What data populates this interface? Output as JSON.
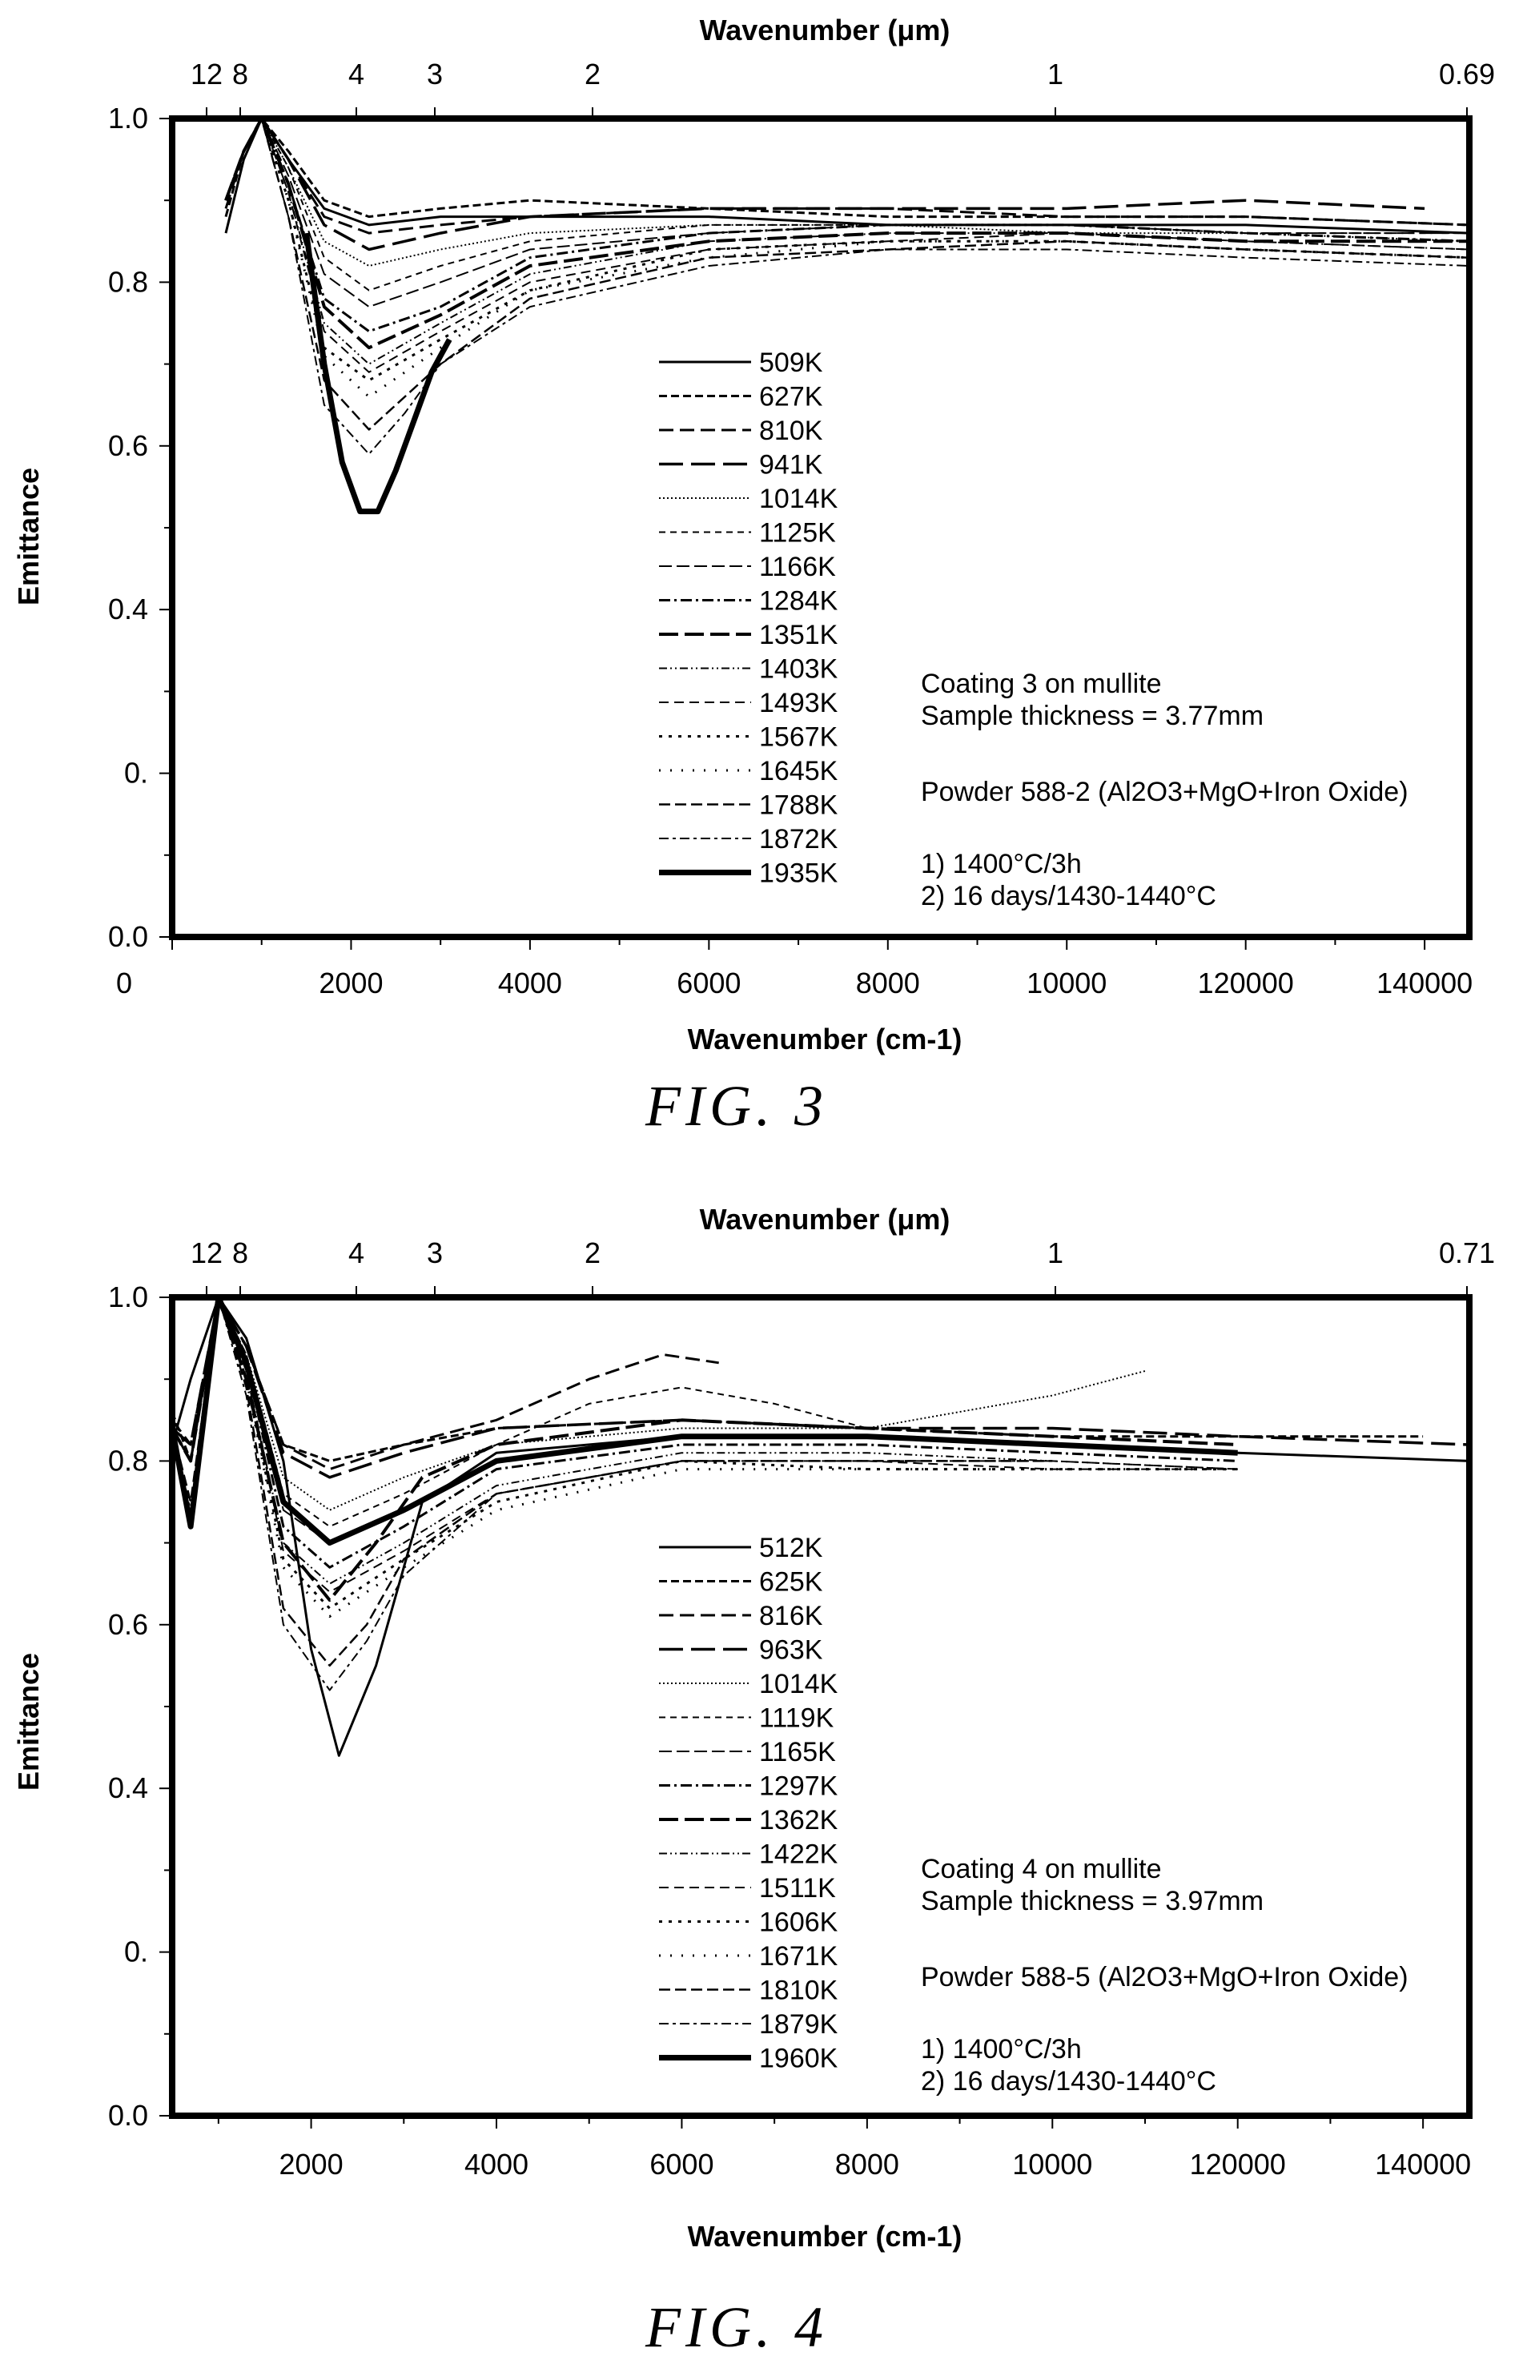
{
  "chart_data": [
    {
      "type": "line",
      "caption": "FIG. 3",
      "top_axis": {
        "title": "Wavenumber (μm)",
        "tick_labels": [
          "12",
          "8",
          "4",
          "3",
          "2",
          "1",
          "0.69"
        ]
      },
      "xlabel": "Wavenumber (cm-1)",
      "ylabel": "Emittance",
      "x_tick_labels": [
        "0",
        "2000",
        "4000",
        "6000",
        "8000",
        "10000",
        "120000",
        "140000"
      ],
      "y_tick_labels": [
        "0.0",
        "0.",
        "0.4",
        "0.6",
        "0.8",
        "1.0"
      ],
      "xlim": [
        0,
        14500
      ],
      "ylim": [
        0,
        1.0
      ],
      "legend_placement": "center",
      "annotations": {
        "coating": "Coating 3 on mullite",
        "thickness": "Sample thickness = 3.77mm",
        "powder": "Powder 588-2 (Al2O3+MgO+Iron Oxide)",
        "step1": "1) 1400°C/3h",
        "step2": "2) 16 days/1430-1440°C"
      },
      "series": [
        {
          "name": "509K",
          "x": [
            600,
            800,
            1000,
            1300,
            1700,
            2200,
            3000,
            4000,
            6000,
            8000,
            10000,
            12000,
            14500
          ],
          "y": [
            0.86,
            0.95,
            1.0,
            0.95,
            0.89,
            0.87,
            0.88,
            0.88,
            0.88,
            0.87,
            0.87,
            0.87,
            0.86
          ]
        },
        {
          "name": "627K",
          "x": [
            600,
            800,
            1000,
            1300,
            1700,
            2200,
            3000,
            4000,
            6000,
            8000,
            10000,
            12000,
            14500
          ],
          "y": [
            0.88,
            0.96,
            1.0,
            0.96,
            0.9,
            0.88,
            0.89,
            0.9,
            0.89,
            0.88,
            0.88,
            0.88,
            0.87
          ]
        },
        {
          "name": "810K",
          "x": [
            600,
            800,
            1000,
            1300,
            1700,
            2200,
            3000,
            4000,
            6000,
            8000,
            10000,
            12000,
            14500
          ],
          "y": [
            0.89,
            0.96,
            1.0,
            0.95,
            0.88,
            0.86,
            0.87,
            0.88,
            0.89,
            0.89,
            0.88,
            0.88,
            0.87
          ]
        },
        {
          "name": "941K",
          "x": [
            600,
            800,
            1000,
            1300,
            1700,
            2200,
            3000,
            4000,
            6000,
            8000,
            10000,
            12000,
            14000
          ],
          "y": [
            0.9,
            0.96,
            1.0,
            0.95,
            0.87,
            0.84,
            0.86,
            0.88,
            0.89,
            0.89,
            0.89,
            0.9,
            0.89
          ]
        },
        {
          "name": "1014K",
          "x": [
            600,
            800,
            1000,
            1300,
            1700,
            2200,
            3000,
            4000,
            6000,
            8000,
            10000,
            12000,
            14500
          ],
          "y": [
            0.9,
            0.96,
            1.0,
            0.94,
            0.85,
            0.82,
            0.84,
            0.86,
            0.87,
            0.87,
            0.86,
            0.86,
            0.85
          ]
        },
        {
          "name": "1125K",
          "x": [
            600,
            800,
            1000,
            1300,
            1700,
            2200,
            3000,
            4000,
            6000,
            8000,
            10000,
            12000,
            14500
          ],
          "y": [
            0.9,
            0.96,
            1.0,
            0.94,
            0.83,
            0.79,
            0.82,
            0.85,
            0.87,
            0.87,
            0.87,
            0.86,
            0.86
          ]
        },
        {
          "name": "1166K",
          "x": [
            600,
            800,
            1000,
            1300,
            1700,
            2200,
            3000,
            4000,
            6000,
            8000,
            10000,
            12000,
            14500
          ],
          "y": [
            0.9,
            0.96,
            1.0,
            0.93,
            0.81,
            0.77,
            0.8,
            0.84,
            0.86,
            0.87,
            0.87,
            0.86,
            0.86
          ]
        },
        {
          "name": "1284K",
          "x": [
            600,
            800,
            1000,
            1300,
            1700,
            2200,
            3000,
            4000,
            6000,
            8000,
            10000,
            12000,
            14500
          ],
          "y": [
            0.9,
            0.96,
            1.0,
            0.92,
            0.78,
            0.74,
            0.77,
            0.83,
            0.86,
            0.87,
            0.87,
            0.86,
            0.85
          ]
        },
        {
          "name": "1351K",
          "x": [
            600,
            800,
            1000,
            1300,
            1700,
            2200,
            3000,
            4000,
            6000,
            8000,
            10000,
            12000,
            14500
          ],
          "y": [
            0.9,
            0.96,
            1.0,
            0.92,
            0.77,
            0.72,
            0.76,
            0.82,
            0.85,
            0.86,
            0.86,
            0.85,
            0.85
          ]
        },
        {
          "name": "1403K",
          "x": [
            600,
            800,
            1000,
            1300,
            1700,
            2200,
            3000,
            4000,
            6000,
            8000,
            10000,
            12000,
            14500
          ],
          "y": [
            0.9,
            0.96,
            1.0,
            0.91,
            0.75,
            0.7,
            0.75,
            0.81,
            0.85,
            0.86,
            0.86,
            0.85,
            0.84
          ]
        },
        {
          "name": "1493K",
          "x": [
            600,
            800,
            1000,
            1300,
            1700,
            2200,
            3000,
            4000,
            6000,
            8000,
            10000,
            12000,
            14500
          ],
          "y": [
            0.9,
            0.96,
            1.0,
            0.91,
            0.74,
            0.69,
            0.74,
            0.8,
            0.84,
            0.85,
            0.86,
            0.85,
            0.84
          ]
        },
        {
          "name": "1567K",
          "x": [
            600,
            800,
            1000,
            1300,
            1700,
            2200,
            3000,
            4000,
            6000,
            8000,
            10000,
            12000,
            14500
          ],
          "y": [
            0.9,
            0.96,
            1.0,
            0.9,
            0.72,
            0.68,
            0.73,
            0.79,
            0.84,
            0.85,
            0.85,
            0.84,
            0.83
          ]
        },
        {
          "name": "1645K",
          "x": [
            600,
            800,
            1000,
            1300,
            1700,
            2200,
            3000,
            4000,
            6000,
            8000,
            10000,
            12000,
            14500
          ],
          "y": [
            0.9,
            0.96,
            1.0,
            0.9,
            0.71,
            0.66,
            0.72,
            0.79,
            0.83,
            0.85,
            0.85,
            0.84,
            0.83
          ]
        },
        {
          "name": "1788K",
          "x": [
            600,
            800,
            1000,
            1300,
            1700,
            2200,
            3000,
            4000,
            6000,
            8000,
            10000,
            12000,
            14500
          ],
          "y": [
            0.9,
            0.96,
            1.0,
            0.88,
            0.68,
            0.62,
            0.7,
            0.78,
            0.83,
            0.84,
            0.85,
            0.84,
            0.83
          ]
        },
        {
          "name": "1872K",
          "x": [
            600,
            800,
            1000,
            1300,
            1700,
            2200,
            2600,
            3000,
            4000,
            6000,
            8000,
            10000,
            12000,
            14500
          ],
          "y": [
            0.9,
            0.96,
            1.0,
            0.88,
            0.65,
            0.59,
            0.64,
            0.7,
            0.77,
            0.82,
            0.84,
            0.84,
            0.83,
            0.82
          ]
        },
        {
          "name": "1935K",
          "x": [
            1500,
            1700,
            1900,
            2100,
            2300,
            2500,
            2700,
            2900,
            3100
          ],
          "y": [
            0.86,
            0.7,
            0.58,
            0.52,
            0.52,
            0.57,
            0.63,
            0.69,
            0.73
          ]
        }
      ]
    },
    {
      "type": "line",
      "caption": "FIG. 4",
      "top_axis": {
        "title": "Wavenumber (μm)",
        "tick_labels": [
          "12",
          "8",
          "4",
          "3",
          "2",
          "1",
          "0.71"
        ]
      },
      "xlabel": "Wavenumber (cm-1)",
      "ylabel": "Emittance",
      "x_tick_labels": [
        "2000",
        "4000",
        "6000",
        "8000",
        "10000",
        "120000",
        "140000"
      ],
      "y_tick_labels": [
        "0.0",
        "0.",
        "0.4",
        "0.6",
        "0.8",
        "1.0"
      ],
      "xlim": [
        500,
        14500
      ],
      "ylim": [
        0,
        1.0
      ],
      "legend_placement": "center",
      "annotations": {
        "coating": "Coating 4 on mullite",
        "thickness": "Sample thickness = 3.97mm",
        "powder": "Powder 588-5 (Al2O3+MgO+Iron Oxide)",
        "step1": "1) 1400°C/3h",
        "step2": "2) 16 days/1430-1440°C"
      },
      "series": [
        {
          "name": "512K",
          "x": [
            500,
            700,
            1000,
            1300,
            1700,
            2000,
            2300,
            2700,
            3200,
            4000,
            6000,
            8000,
            10000,
            12000,
            14500
          ],
          "y": [
            0.82,
            0.9,
            1.0,
            0.95,
            0.8,
            0.57,
            0.44,
            0.55,
            0.75,
            0.81,
            0.83,
            0.83,
            0.82,
            0.81,
            0.8
          ]
        },
        {
          "name": "625K",
          "x": [
            500,
            700,
            1000,
            1300,
            1700,
            2200,
            3000,
            4000,
            6000,
            8000,
            10000,
            12000,
            14000
          ],
          "y": [
            0.86,
            0.8,
            1.0,
            0.94,
            0.82,
            0.8,
            0.82,
            0.84,
            0.85,
            0.84,
            0.83,
            0.83,
            0.83
          ]
        },
        {
          "name": "816K",
          "x": [
            500,
            700,
            1000,
            1300,
            1700,
            2200,
            3000,
            4000,
            5000,
            5800,
            6400
          ],
          "y": [
            0.85,
            0.82,
            1.0,
            0.94,
            0.82,
            0.79,
            0.82,
            0.85,
            0.9,
            0.93,
            0.92
          ]
        },
        {
          "name": "963K",
          "x": [
            500,
            700,
            1000,
            1300,
            1700,
            2200,
            3000,
            4000,
            6000,
            8000,
            10000,
            12000,
            14500
          ],
          "y": [
            0.84,
            0.82,
            1.0,
            0.94,
            0.81,
            0.78,
            0.81,
            0.84,
            0.85,
            0.84,
            0.84,
            0.83,
            0.82
          ]
        },
        {
          "name": "1014K",
          "x": [
            500,
            700,
            1000,
            1300,
            1700,
            2200,
            3000,
            4000,
            6000,
            8000,
            10000,
            11000
          ],
          "y": [
            0.84,
            0.8,
            1.0,
            0.93,
            0.78,
            0.74,
            0.78,
            0.82,
            0.84,
            0.84,
            0.88,
            0.91
          ]
        },
        {
          "name": "1119K",
          "x": [
            500,
            700,
            1000,
            1300,
            1700,
            2200,
            3000,
            4000,
            5000,
            6000,
            7000,
            8000
          ],
          "y": [
            0.84,
            0.8,
            1.0,
            0.93,
            0.76,
            0.72,
            0.76,
            0.82,
            0.87,
            0.89,
            0.87,
            0.84
          ]
        },
        {
          "name": "1165K",
          "x": [
            500,
            700,
            1000,
            1300,
            1700,
            2200,
            3000,
            4000,
            6000,
            8000,
            10000,
            12000
          ],
          "y": [
            0.84,
            0.8,
            1.0,
            0.92,
            0.74,
            0.7,
            0.74,
            0.8,
            0.83,
            0.83,
            0.82,
            0.81
          ]
        },
        {
          "name": "1297K",
          "x": [
            500,
            700,
            1000,
            1300,
            1700,
            2200,
            3000,
            4000,
            6000,
            8000,
            10000,
            12000
          ],
          "y": [
            0.84,
            0.8,
            1.0,
            0.92,
            0.72,
            0.67,
            0.72,
            0.79,
            0.82,
            0.82,
            0.81,
            0.8
          ]
        },
        {
          "name": "1362K",
          "x": [
            500,
            700,
            1000,
            1300,
            1700,
            2200,
            2700,
            3200,
            4000,
            6000,
            8000,
            10000,
            12000
          ],
          "y": [
            0.84,
            0.8,
            1.0,
            0.9,
            0.7,
            0.63,
            0.7,
            0.78,
            0.82,
            0.85,
            0.84,
            0.83,
            0.82
          ]
        },
        {
          "name": "1422K",
          "x": [
            500,
            700,
            1000,
            1300,
            1700,
            2200,
            3000,
            4000,
            6000,
            8000,
            10000,
            12000
          ],
          "y": [
            0.84,
            0.8,
            1.0,
            0.91,
            0.7,
            0.65,
            0.7,
            0.77,
            0.81,
            0.81,
            0.8,
            0.79
          ]
        },
        {
          "name": "1511K",
          "x": [
            500,
            700,
            1000,
            1300,
            1700,
            2200,
            3000,
            4000,
            6000,
            8000,
            10000,
            12000
          ],
          "y": [
            0.84,
            0.8,
            1.0,
            0.91,
            0.69,
            0.64,
            0.69,
            0.76,
            0.8,
            0.8,
            0.79,
            0.79
          ]
        },
        {
          "name": "1606K",
          "x": [
            500,
            700,
            1000,
            1300,
            1700,
            2200,
            3000,
            4000,
            6000,
            8000,
            10000,
            12000
          ],
          "y": [
            0.84,
            0.8,
            1.0,
            0.9,
            0.68,
            0.62,
            0.68,
            0.75,
            0.8,
            0.79,
            0.79,
            0.79
          ]
        },
        {
          "name": "1671K",
          "x": [
            500,
            700,
            1000,
            1300,
            1700,
            2200,
            3000,
            4000,
            6000,
            8000,
            10000,
            12000
          ],
          "y": [
            0.84,
            0.8,
            1.0,
            0.9,
            0.67,
            0.61,
            0.67,
            0.74,
            0.79,
            0.79,
            0.79,
            0.79
          ]
        },
        {
          "name": "1810K",
          "x": [
            500,
            700,
            1000,
            1300,
            1700,
            2200,
            2600,
            3000,
            4000,
            6000,
            8000,
            10000
          ],
          "y": [
            0.84,
            0.75,
            1.0,
            0.89,
            0.62,
            0.55,
            0.6,
            0.68,
            0.76,
            0.8,
            0.8,
            0.8
          ]
        },
        {
          "name": "1879K",
          "x": [
            500,
            700,
            1000,
            1300,
            1700,
            2200,
            2600,
            3000,
            4000,
            6000,
            8000,
            10000,
            12000
          ],
          "y": [
            0.84,
            0.74,
            1.0,
            0.88,
            0.6,
            0.52,
            0.58,
            0.66,
            0.76,
            0.8,
            0.8,
            0.8,
            0.79
          ]
        },
        {
          "name": "1960K",
          "x": [
            500,
            700,
            1000,
            1300,
            1700,
            2200,
            3000,
            4000,
            6000,
            8000,
            10000,
            12000
          ],
          "y": [
            0.84,
            0.72,
            1.0,
            0.92,
            0.75,
            0.7,
            0.74,
            0.8,
            0.83,
            0.83,
            0.82,
            0.81
          ]
        }
      ]
    }
  ]
}
